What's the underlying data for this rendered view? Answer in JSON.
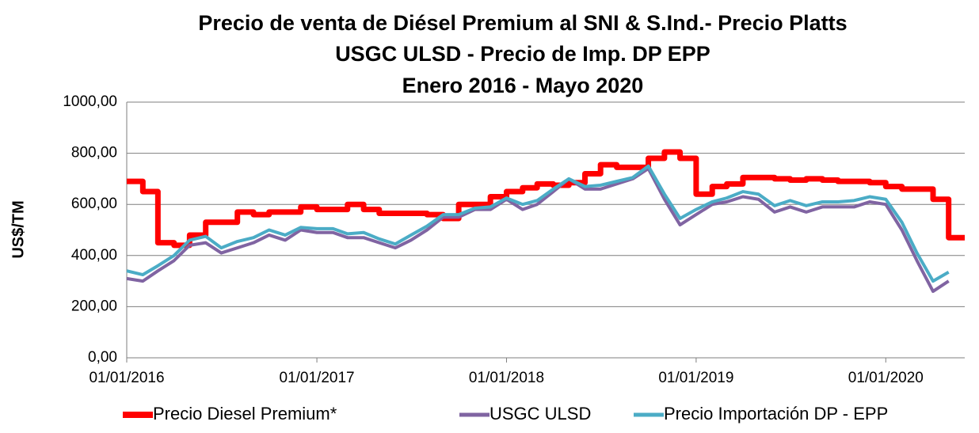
{
  "chart_data": {
    "type": "line",
    "title": [
      "Precio de venta de  Diésel Premium al SNI & S.Ind.-  Precio Platts",
      "USGC ULSD - Precio de Imp. DP EPP",
      "Enero 2016 - Mayo 2020"
    ],
    "y_label": "US$/TM",
    "x": [
      "01/01/2016",
      "01/02/2016",
      "01/03/2016",
      "01/04/2016",
      "01/05/2016",
      "01/06/2016",
      "01/07/2016",
      "01/08/2016",
      "01/09/2016",
      "01/10/2016",
      "01/11/2016",
      "01/12/2016",
      "01/01/2017",
      "01/02/2017",
      "01/03/2017",
      "01/04/2017",
      "01/05/2017",
      "01/06/2017",
      "01/07/2017",
      "01/08/2017",
      "01/09/2017",
      "01/10/2017",
      "01/11/2017",
      "01/12/2017",
      "01/01/2018",
      "01/02/2018",
      "01/03/2018",
      "01/04/2018",
      "01/05/2018",
      "01/06/2018",
      "01/07/2018",
      "01/08/2018",
      "01/09/2018",
      "01/10/2018",
      "01/11/2018",
      "01/12/2018",
      "01/01/2019",
      "01/02/2019",
      "01/03/2019",
      "01/04/2019",
      "01/05/2019",
      "01/06/2019",
      "01/07/2019",
      "01/08/2019",
      "01/09/2019",
      "01/10/2019",
      "01/11/2019",
      "01/12/2019",
      "01/01/2020",
      "01/02/2020",
      "01/03/2020",
      "01/04/2020",
      "01/05/2020"
    ],
    "series": [
      {
        "name": "Precio Diesel Premium*",
        "color": "#ff0000",
        "width": 7,
        "step": true,
        "values": [
          690,
          650,
          450,
          440,
          480,
          530,
          530,
          570,
          560,
          570,
          570,
          590,
          580,
          580,
          600,
          580,
          565,
          565,
          565,
          560,
          545,
          600,
          600,
          630,
          650,
          665,
          680,
          675,
          685,
          720,
          755,
          745,
          745,
          780,
          805,
          780,
          640,
          670,
          680,
          705,
          705,
          700,
          695,
          700,
          695,
          690,
          690,
          685,
          670,
          660,
          660,
          620,
          470
        ]
      },
      {
        "name": "USGC ULSD",
        "color": "#8064a2",
        "width": 4,
        "step": false,
        "values": [
          310,
          300,
          340,
          380,
          440,
          450,
          410,
          430,
          450,
          480,
          460,
          500,
          490,
          490,
          470,
          470,
          450,
          430,
          460,
          500,
          550,
          550,
          580,
          580,
          620,
          580,
          600,
          650,
          700,
          660,
          660,
          680,
          700,
          740,
          620,
          520,
          560,
          600,
          610,
          630,
          620,
          570,
          590,
          570,
          590,
          590,
          590,
          610,
          600,
          500,
          380,
          260,
          300
        ]
      },
      {
        "name": "Precio Importación DP - EPP",
        "color": "#4bacc6",
        "width": 4,
        "step": false,
        "values": [
          340,
          325,
          360,
          400,
          460,
          475,
          430,
          455,
          470,
          500,
          480,
          510,
          505,
          505,
          485,
          490,
          465,
          445,
          480,
          515,
          560,
          560,
          585,
          590,
          625,
          600,
          615,
          660,
          700,
          670,
          675,
          690,
          705,
          750,
          640,
          545,
          580,
          610,
          625,
          650,
          640,
          595,
          615,
          595,
          610,
          610,
          615,
          630,
          620,
          530,
          410,
          300,
          335
        ]
      }
    ],
    "xlim": [
      "01/01/2016",
      "01/06/2020"
    ],
    "xticks": [
      "01/01/2016",
      "01/01/2017",
      "01/01/2018",
      "01/01/2019",
      "01/01/2020"
    ],
    "ylim": [
      0,
      1000
    ],
    "yticks": [
      {
        "value": 0,
        "label": "0,00"
      },
      {
        "value": 200,
        "label": "200,00"
      },
      {
        "value": 400,
        "label": "400,00"
      },
      {
        "value": 600,
        "label": "600,00"
      },
      {
        "value": 800,
        "label": "800,00"
      },
      {
        "value": 1000,
        "label": "1000,00"
      }
    ],
    "grid": true,
    "legend": "bottom"
  }
}
